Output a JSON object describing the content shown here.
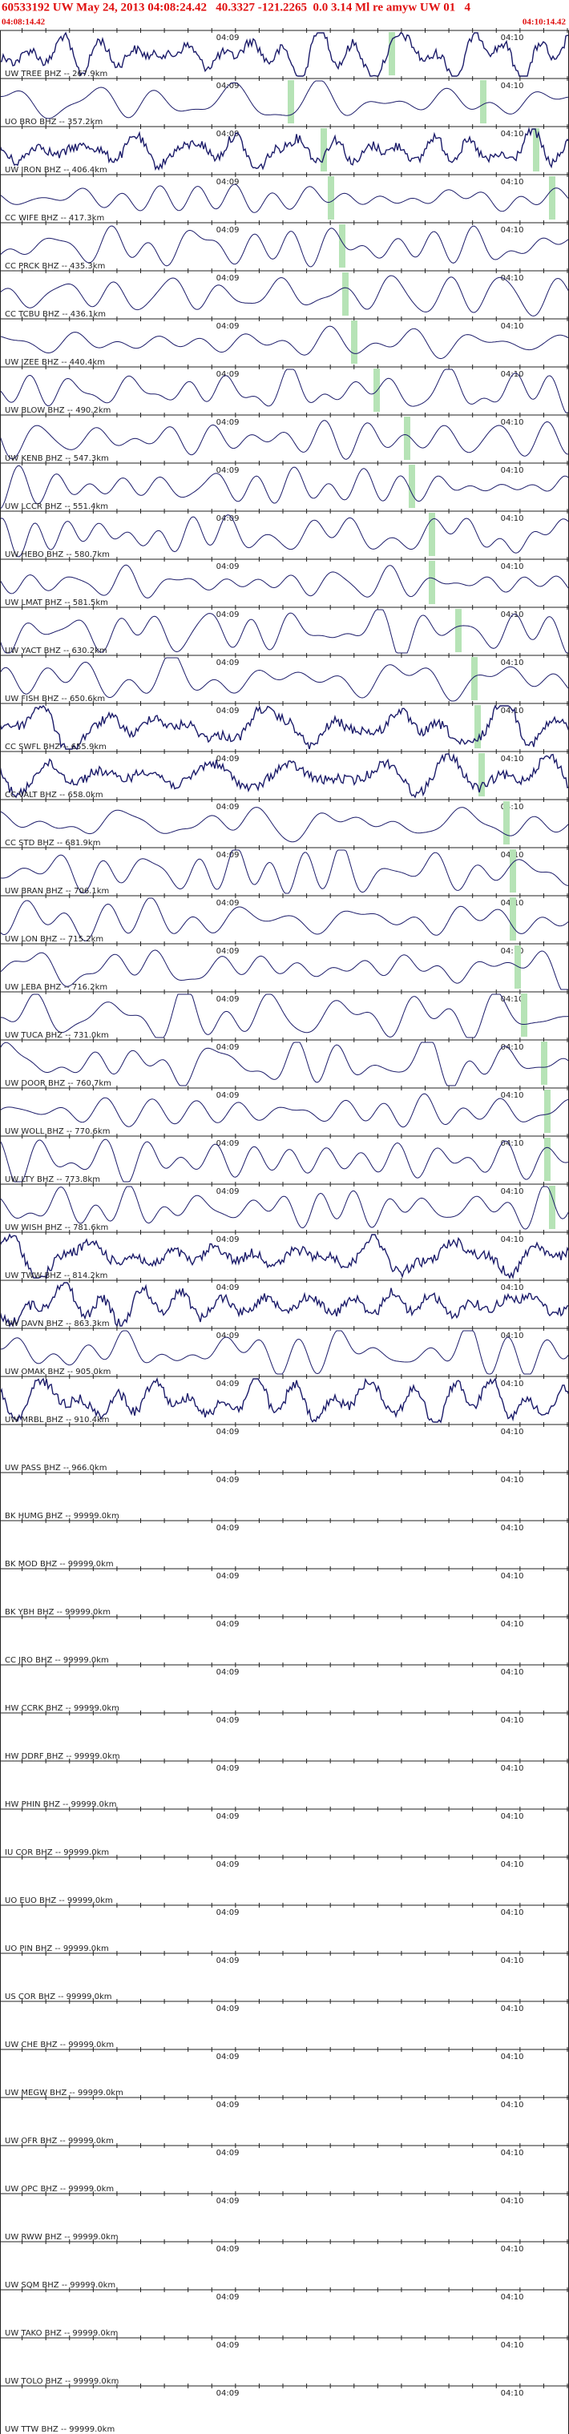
{
  "header": {
    "title": "60533192 UW May 24, 2013 04:08:24.42   40.3327 -121.2265  0.0 3.14 Ml re amyw UW 01   4",
    "start_time": "04:08:14.42",
    "end_time": "04:10:14.42"
  },
  "time_labels": [
    "04:09",
    "04:10"
  ],
  "traces": [
    {
      "label": "UW TREE BHZ -- 267.9km"
    },
    {
      "label": "UO BRO BHZ -- 357.2km"
    },
    {
      "label": "UW IRON BHZ -- 406.4km"
    },
    {
      "label": "CC WIFE BHZ -- 417.3km"
    },
    {
      "label": "CC PRCK BHZ -- 435.3km"
    },
    {
      "label": "CC TCBU BHZ -- 436.1km"
    },
    {
      "label": "UW IZEE BHZ -- 440.4km"
    },
    {
      "label": "UW BLOW BHZ -- 490.2km"
    },
    {
      "label": "UW KENB BHZ -- 547.3km"
    },
    {
      "label": "UW LCCR BHZ -- 551.4km"
    },
    {
      "label": "UW HEBO BHZ -- 580.7km"
    },
    {
      "label": "UW LMAT BHZ -- 581.5km"
    },
    {
      "label": "UW YACT BHZ -- 630.2km"
    },
    {
      "label": "UW FISH BHZ -- 650.6km"
    },
    {
      "label": "CC SWFL BHZ -- 655.9km"
    },
    {
      "label": "CC VALT BHZ -- 658.0km"
    },
    {
      "label": "CC STD BHZ -- 681.9km"
    },
    {
      "label": "UW BRAN BHZ -- 706.1km"
    },
    {
      "label": "UW LON BHZ -- 715.2km"
    },
    {
      "label": "UW LEBA BHZ -- 716.2km"
    },
    {
      "label": "UW TUCA BHZ -- 731.0km"
    },
    {
      "label": "UW DOOR BHZ -- 760.7km"
    },
    {
      "label": "UW WOLL BHZ -- 770.6km"
    },
    {
      "label": "UW LTY BHZ -- 773.8km"
    },
    {
      "label": "UW WISH BHZ -- 781.6km"
    },
    {
      "label": "UW TWW BHZ -- 814.2km"
    },
    {
      "label": "UW DAVN BHZ -- 863.3km"
    },
    {
      "label": "UW OMAK BHZ -- 905.0km"
    },
    {
      "label": "UW MRBL BHZ -- 910.4km"
    },
    {
      "label": "UW PASS BHZ -- 966.0km"
    },
    {
      "label": "BK HUMG BHZ -- 99999.0km"
    },
    {
      "label": "BK MOD BHZ -- 99999.0km"
    },
    {
      "label": "BK YBH BHZ -- 99999.0km"
    },
    {
      "label": "CC JRO BHZ -- 99999.0km"
    },
    {
      "label": "HW CCRK BHZ -- 99999.0km"
    },
    {
      "label": "HW DDRF BHZ -- 99999.0km"
    },
    {
      "label": "HW PHIN BHZ -- 99999.0km"
    },
    {
      "label": "IU COR BHZ -- 99999.0km"
    },
    {
      "label": "UO EUO BHZ -- 99999.0km"
    },
    {
      "label": "UO PIN BHZ -- 99999.0km"
    },
    {
      "label": "US COR BHZ -- 99999.0km"
    },
    {
      "label": "UW CHE BHZ -- 99999.0km"
    },
    {
      "label": "UW MEGW BHZ -- 99999.0km"
    },
    {
      "label": "UW OFR BHZ -- 99999.0km"
    },
    {
      "label": "UW OPC BHZ -- 99999.0km"
    },
    {
      "label": "UW RWW BHZ -- 99999.0km"
    },
    {
      "label": "UW SQM BHZ -- 99999.0km"
    },
    {
      "label": "UW TAKO BHZ -- 99999.0km"
    },
    {
      "label": "UW TOLO BHZ -- 99999.0km"
    },
    {
      "label": "UW TTW BHZ -- 99999.0km"
    }
  ]
}
